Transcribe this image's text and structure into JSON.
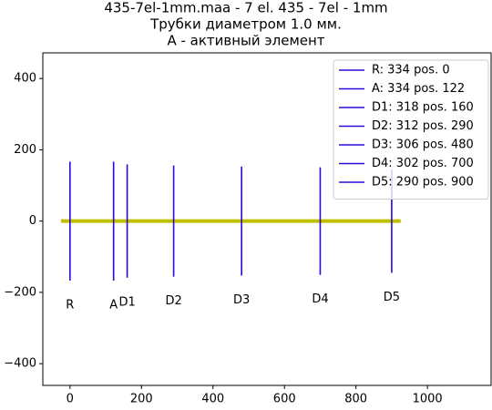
{
  "chart_data": {
    "type": "vlines",
    "title": [
      "435-7el-1mm.maa - 7 el. 435 - 7el - 1mm",
      "Трубки диаметром 1.0 мм.",
      "A - активный элемент"
    ],
    "xlim": [
      -76,
      1178
    ],
    "ylim": [
      -461,
      472
    ],
    "xticks": [
      0,
      200,
      400,
      600,
      800,
      1000
    ],
    "yticks": [
      {
        "value": -400,
        "label": "−400"
      },
      {
        "value": -200,
        "label": "−200"
      },
      0,
      200,
      400
    ],
    "legend": "upper right",
    "boom": {
      "x": [
        -25,
        925
      ],
      "y": [
        0,
        0
      ],
      "color": "#bfbf00"
    },
    "series": [
      {
        "name": "R: 334 pos. 0",
        "label": "R",
        "color": "#2a0ad8",
        "x": 0,
        "length": 334
      },
      {
        "name": "A: 334 pos. 122",
        "label": "A",
        "color": "#2a0ad8",
        "x": 122,
        "length": 334
      },
      {
        "name": "D1: 318 pos. 160",
        "label": "D1",
        "color": "#2a0ad8",
        "x": 160,
        "length": 318
      },
      {
        "name": "D2: 312 pos. 290",
        "label": "D2",
        "color": "#2a0ad8",
        "x": 290,
        "length": 312
      },
      {
        "name": "D3: 306 pos. 480",
        "label": "D3",
        "color": "#2a0ad8",
        "x": 480,
        "length": 306
      },
      {
        "name": "D4: 302 pos. 700",
        "label": "D4",
        "color": "#2a0ad8",
        "x": 700,
        "length": 302
      },
      {
        "name": "D5: 290 pos. 900",
        "label": "D5",
        "color": "#2a0ad8",
        "x": 900,
        "length": 290
      }
    ]
  }
}
